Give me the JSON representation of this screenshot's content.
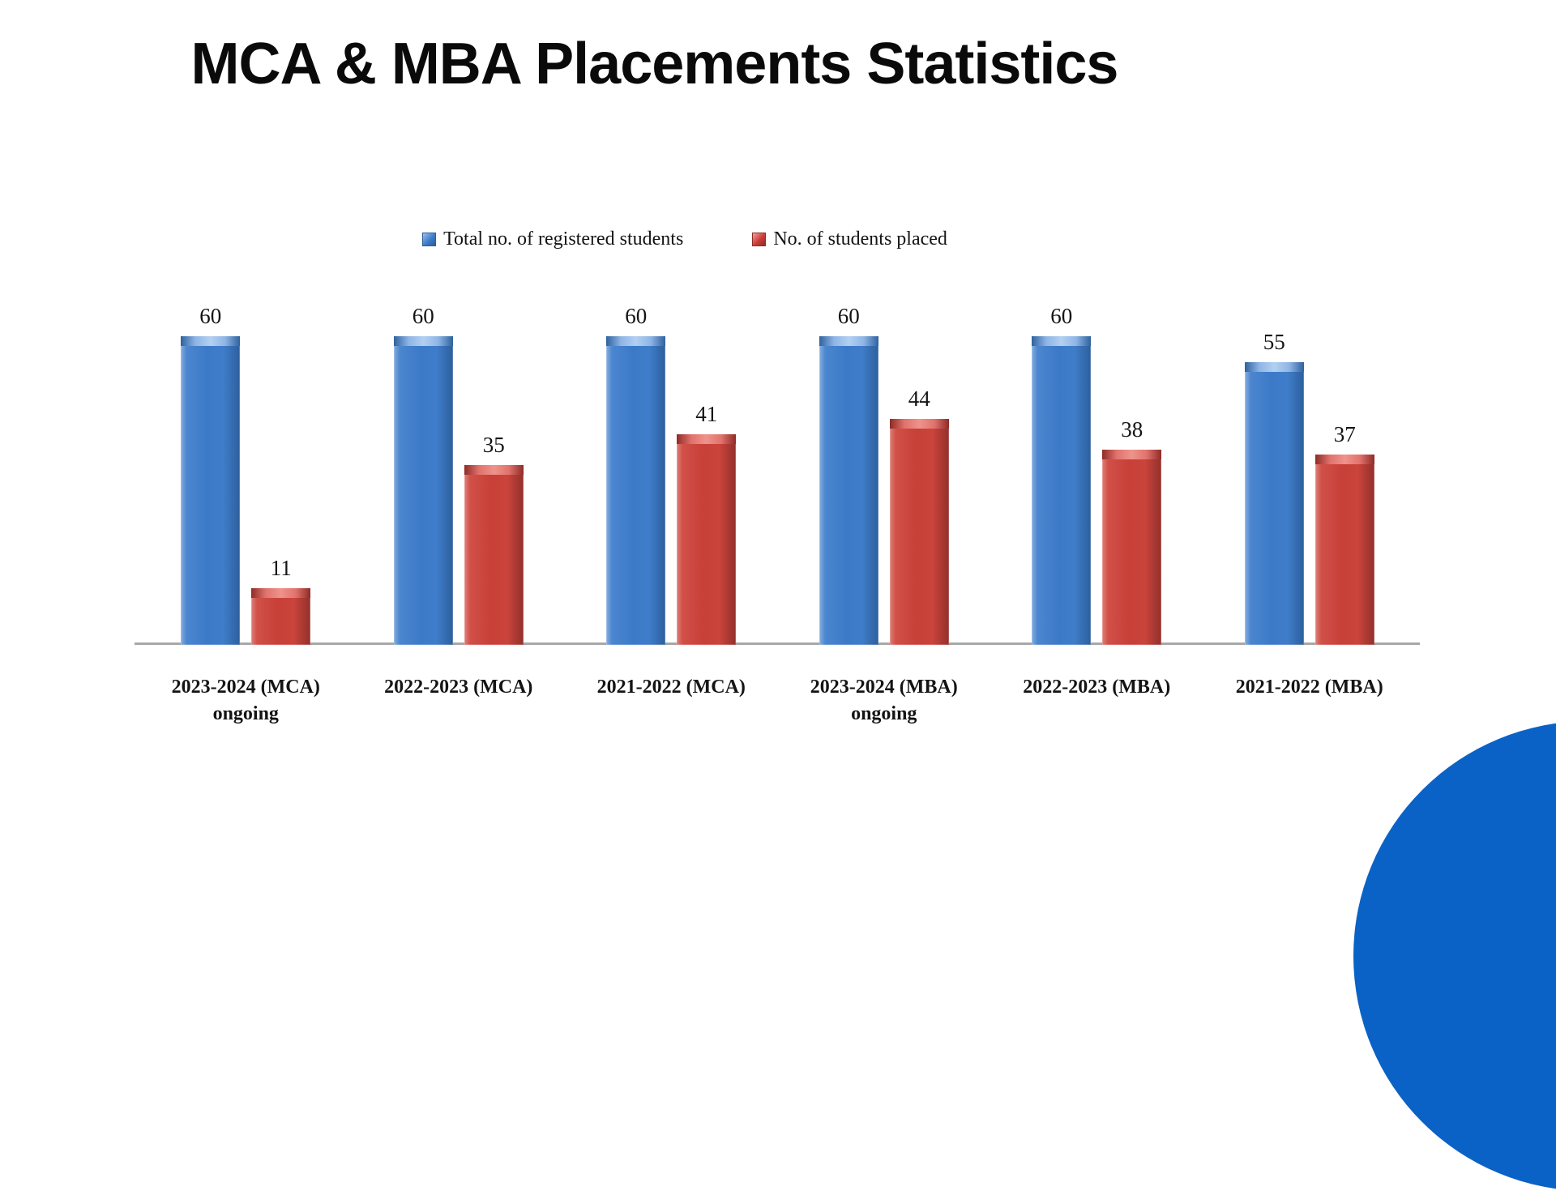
{
  "page": {
    "background": "#ffffff",
    "corner_accent_color": "#0a62c6",
    "axis_line_color": "#a8a8a8",
    "text_color": "#141414"
  },
  "title": "MCA & MBA Placements Statistics",
  "legend": [
    {
      "label": "Total no. of registered students",
      "color": "#3d7cc9"
    },
    {
      "label": "No. of students placed",
      "color": "#cc3b36"
    }
  ],
  "chart_data": {
    "type": "bar",
    "title": "MCA & MBA Placements Statistics",
    "categories": [
      "2023-2024 (MCA) ongoing",
      "2022-2023 (MCA)",
      "2021-2022 (MCA)",
      "2023-2024 (MBA) ongoing",
      "2022-2023 (MBA)",
      "2021-2022 (MBA)"
    ],
    "category_lines": [
      [
        "2023-2024 (MCA)",
        "ongoing"
      ],
      [
        "2022-2023 (MCA)"
      ],
      [
        "2021-2022 (MCA)"
      ],
      [
        "2023-2024 (MBA)",
        "ongoing"
      ],
      [
        "2022-2023 (MBA)"
      ],
      [
        "2021-2022 (MBA)"
      ]
    ],
    "series": [
      {
        "name": "Total no. of registered students",
        "color": "#3d7cc9",
        "values": [
          60,
          60,
          60,
          60,
          60,
          55
        ]
      },
      {
        "name": "No. of students placed",
        "color": "#cc3b36",
        "values": [
          11,
          35,
          41,
          44,
          38,
          37
        ]
      }
    ],
    "xlabel": "",
    "ylabel": "",
    "ylim": [
      0,
      66
    ],
    "grid": false,
    "legend_position": "top",
    "data_labels": true
  }
}
